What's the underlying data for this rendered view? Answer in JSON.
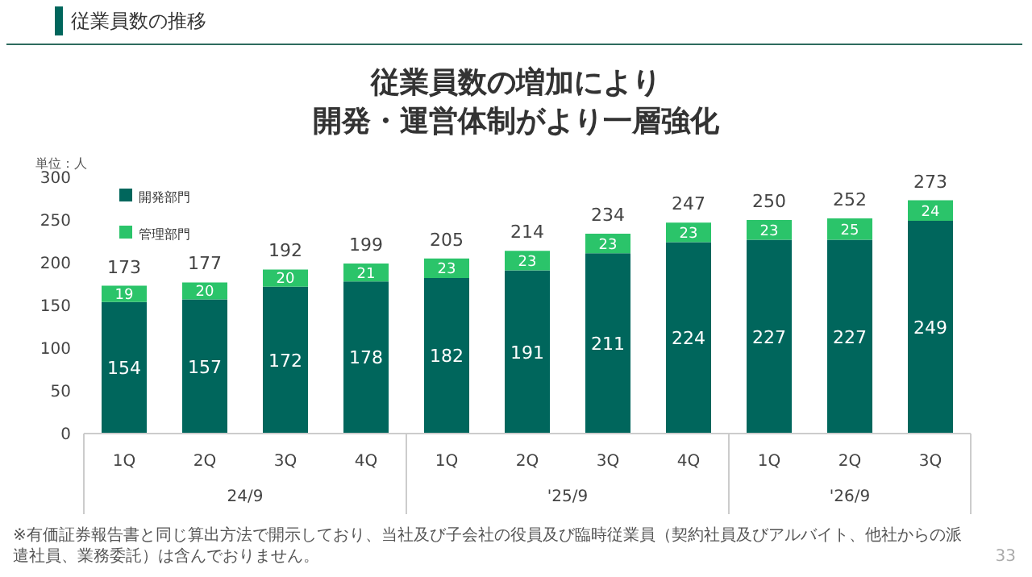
{
  "chart_data": {
    "type": "bar",
    "stacked": true,
    "title": "従業員数の増加により",
    "subtitle": "開発・運営体制がより一層強化",
    "ylabel": "単位：人",
    "categories": [
      "1Q",
      "2Q",
      "3Q",
      "4Q",
      "1Q",
      "2Q",
      "3Q",
      "4Q",
      "1Q",
      "2Q",
      "3Q"
    ],
    "series": [
      {
        "name": "開発部門",
        "color": "#00665c",
        "values": [
          154,
          157,
          172,
          178,
          182,
          191,
          211,
          224,
          227,
          227,
          249
        ]
      },
      {
        "name": "管理部門",
        "color": "#2bc46a",
        "values": [
          19,
          20,
          20,
          21,
          23,
          23,
          23,
          23,
          23,
          25,
          24
        ]
      }
    ],
    "totals": [
      "173",
      "177",
      "192",
      "199",
      "205",
      "214",
      "234",
      "247",
      "250",
      "252",
      "273"
    ],
    "data_labels": true,
    "ylim": [
      0,
      300
    ],
    "yticks": [
      0,
      50,
      100,
      150,
      200,
      250,
      300
    ],
    "legend": "top left",
    "annotations": [
      "従業員数の推移",
      "24/9",
      "'25/9",
      "'26/9",
      "※有価証券報告書と同じ算出方法で開示しており、当社及び子会社の役員及び臨時従業員（契約社員及びアルバイト、他社からの派遣社員、業務委託）は含んでおりません。",
      "33"
    ]
  }
}
